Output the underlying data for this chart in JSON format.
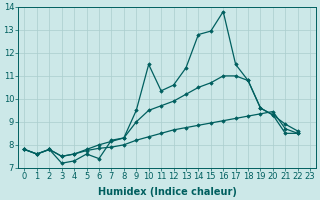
{
  "xlabel": "Humidex (Indice chaleur)",
  "ylabel": "",
  "xlim": [
    -0.5,
    23.5
  ],
  "ylim": [
    7,
    14
  ],
  "xticks": [
    0,
    1,
    2,
    3,
    4,
    5,
    6,
    7,
    8,
    9,
    10,
    11,
    12,
    13,
    14,
    15,
    16,
    17,
    18,
    19,
    20,
    21,
    22,
    23
  ],
  "yticks": [
    7,
    8,
    9,
    10,
    11,
    12,
    13,
    14
  ],
  "x": [
    0,
    1,
    2,
    3,
    4,
    5,
    6,
    7,
    8,
    9,
    10,
    11,
    12,
    13,
    14,
    15,
    16,
    17,
    18,
    19,
    20,
    21,
    22,
    23
  ],
  "line_top": [
    7.8,
    7.6,
    7.8,
    7.2,
    7.3,
    7.6,
    7.4,
    8.2,
    8.3,
    9.5,
    11.5,
    10.35,
    10.6,
    11.35,
    12.8,
    12.95,
    13.8,
    11.5,
    10.8,
    9.6,
    9.3,
    8.5,
    8.5,
    null
  ],
  "line_mid": [
    7.8,
    7.6,
    7.8,
    7.5,
    7.6,
    7.8,
    8.0,
    8.15,
    8.3,
    9.0,
    9.5,
    9.7,
    9.9,
    10.2,
    10.5,
    10.7,
    11.0,
    11.0,
    10.8,
    9.6,
    9.3,
    8.9,
    8.6,
    null
  ],
  "line_bot": [
    7.8,
    7.6,
    7.8,
    7.5,
    7.6,
    7.75,
    7.85,
    7.9,
    8.0,
    8.2,
    8.35,
    8.5,
    8.65,
    8.75,
    8.85,
    8.95,
    9.05,
    9.15,
    9.25,
    9.35,
    9.45,
    8.7,
    8.5,
    null
  ],
  "line_color": "#005f5f",
  "bg_color": "#cce8e8",
  "grid_color": "#aacece",
  "tick_fontsize": 6,
  "label_fontsize": 7
}
